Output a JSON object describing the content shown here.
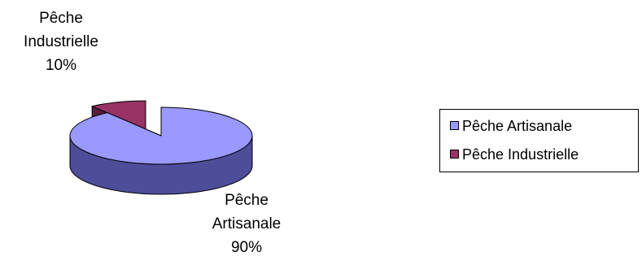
{
  "chart_data": {
    "type": "pie",
    "style": "3d",
    "exploded": true,
    "categories": [
      "Pêche Artisanale",
      "Pêche Industrielle"
    ],
    "values": [
      90,
      10
    ],
    "unit": "%",
    "title": "",
    "data_labels": [
      {
        "lines": [
          "Pêche",
          "Artisanale",
          "90%"
        ]
      },
      {
        "lines": [
          "Pêche",
          "Industrielle",
          "10%"
        ]
      }
    ],
    "legend": {
      "placement": "right",
      "entries": [
        "Pêche Artisanale",
        "Pêche Industrielle"
      ]
    },
    "colors": {
      "slices": [
        "#9999ff",
        "#993366"
      ],
      "slice_sides": [
        "#4d4d9a",
        "#5a1e3c"
      ],
      "outline": "#000000"
    }
  }
}
